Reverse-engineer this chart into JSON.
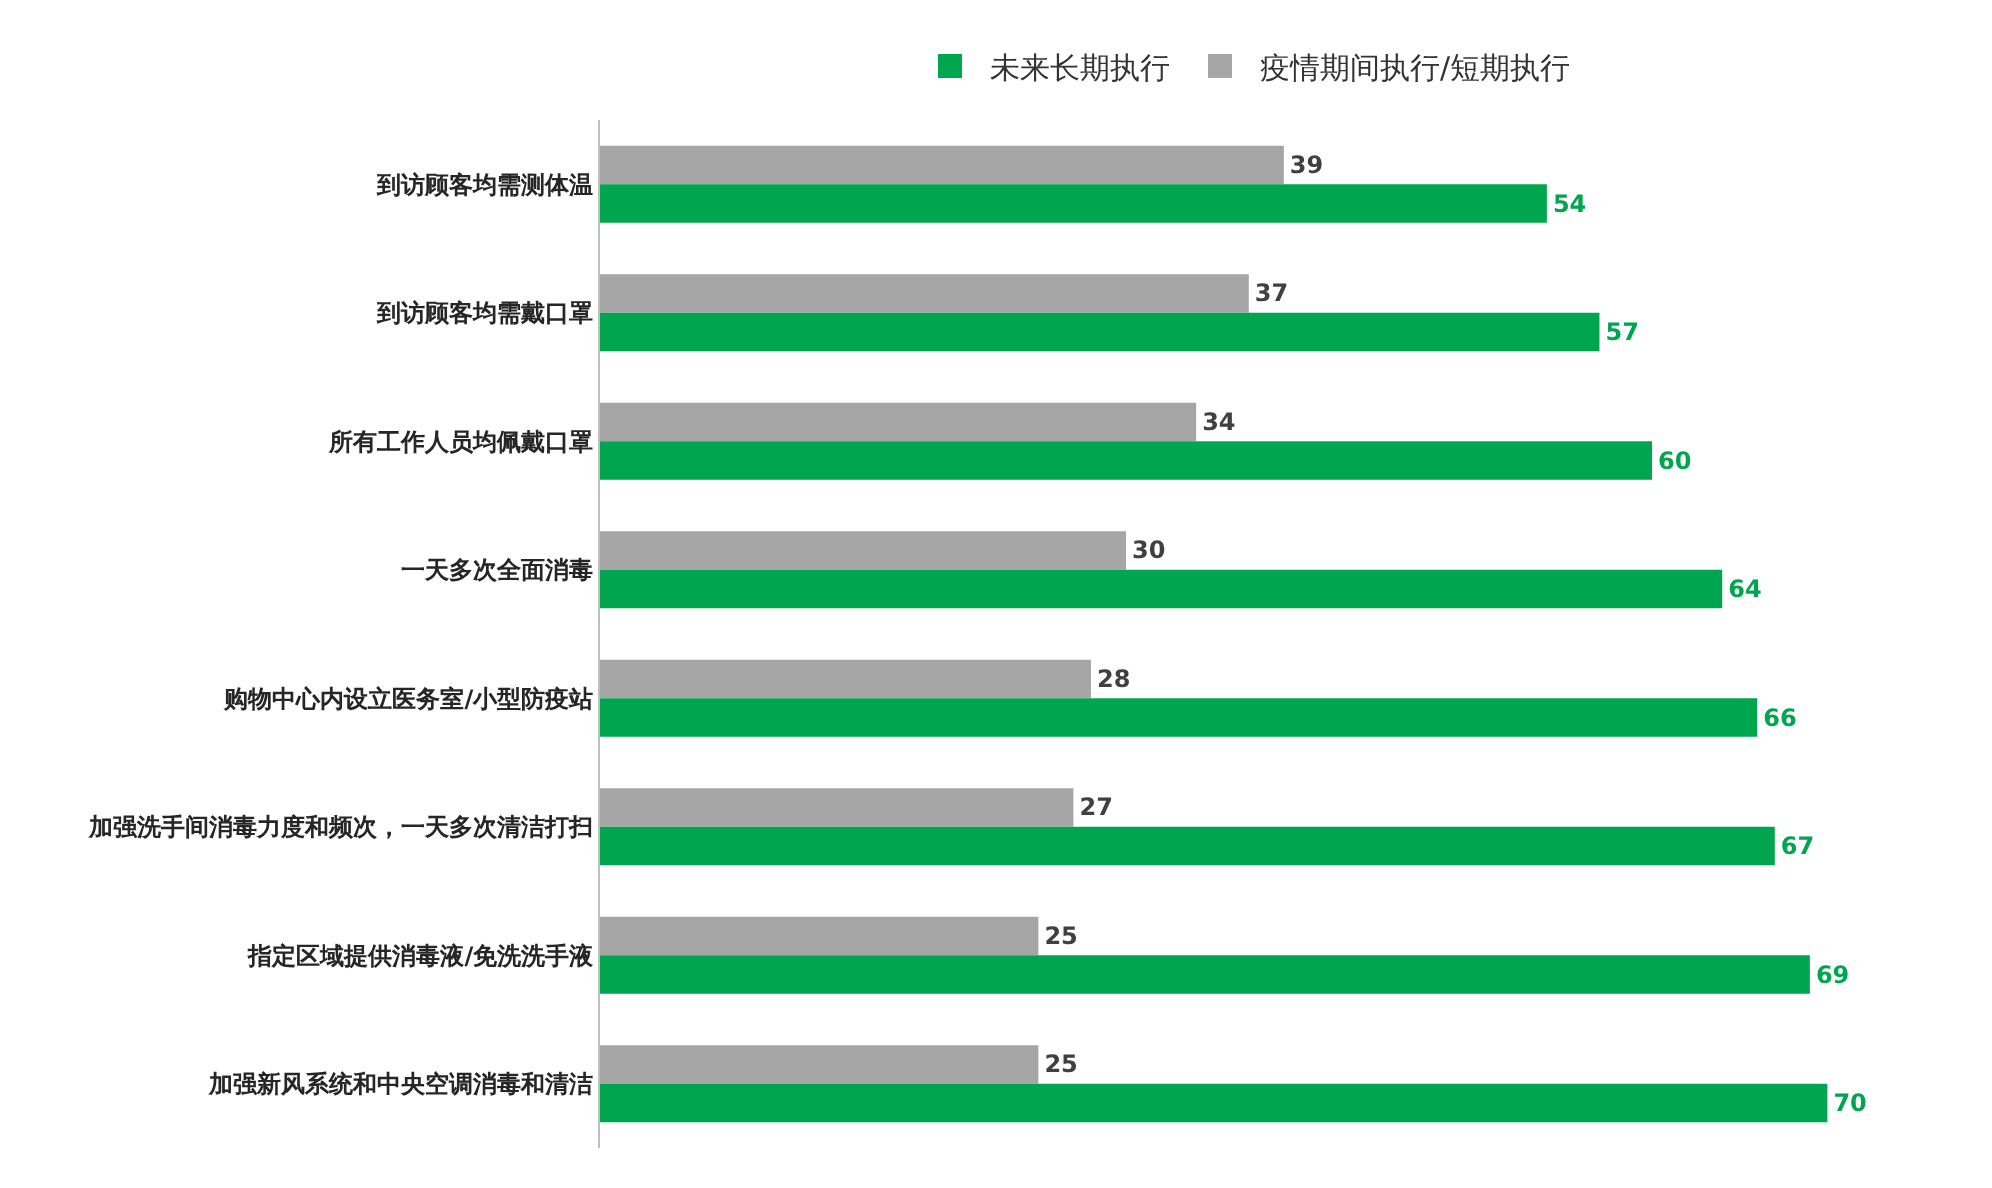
{
  "chart_data": {
    "type": "bar",
    "orientation": "horizontal",
    "categories": [
      "到访顾客均需测体温",
      "到访顾客均需戴口罩",
      "所有工作人员均佩戴口罩",
      "一天多次全面消毒",
      "购物中心内设立医务室/小型防疫站",
      "加强洗手间消毒力度和频次，一天多次清洁打扫",
      "指定区域提供消毒液/免洗洗手液",
      "加强新风系统和中央空调消毒和清洁"
    ],
    "series": [
      {
        "name": "未来长期执行",
        "color": "#00a64f",
        "values": [
          54,
          57,
          60,
          64,
          66,
          67,
          69,
          70
        ]
      },
      {
        "name": "疫情期间执行/短期执行",
        "color": "#a6a6a6",
        "values": [
          39,
          37,
          34,
          30,
          28,
          27,
          25,
          25
        ]
      }
    ],
    "data_labels": true,
    "legend": "top"
  }
}
